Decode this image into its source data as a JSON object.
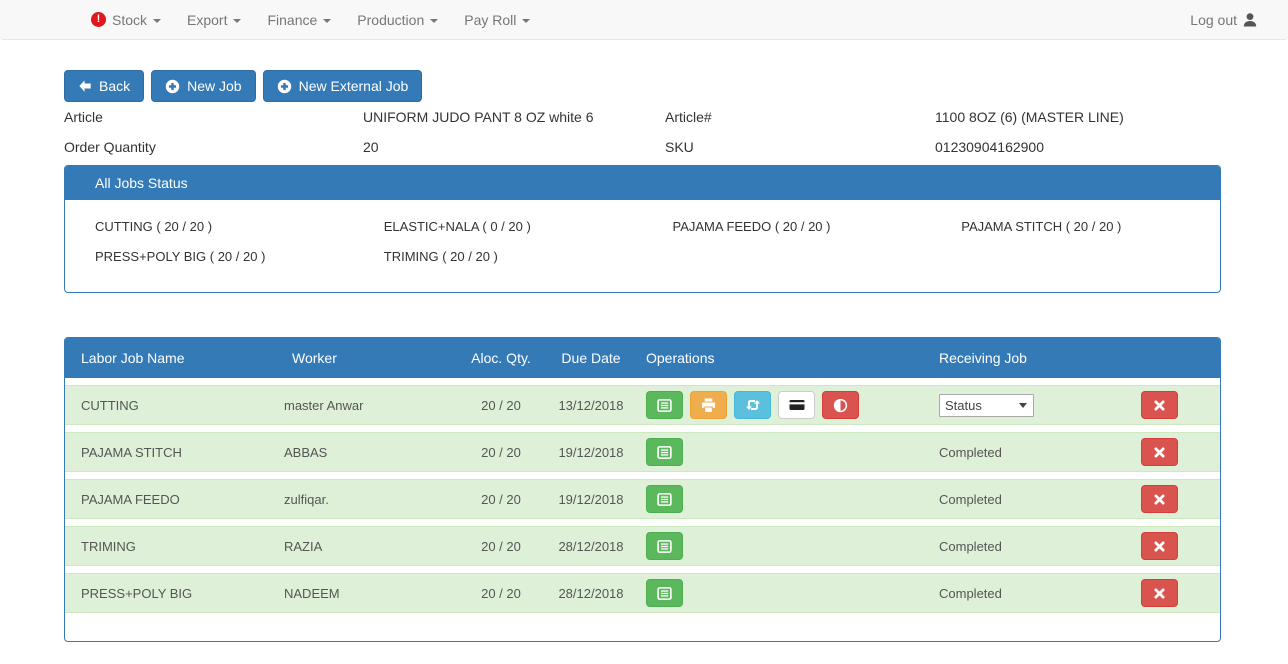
{
  "colors": {
    "primary_blue": "#337ab7",
    "primary_border": "#2e6da4",
    "success_green": "#5cb85c",
    "warning_orange": "#f0ad4e",
    "info_blue": "#5bc0de",
    "danger_red": "#d9534f",
    "row_background": "#dff0d8",
    "navbar_background": "#f8f8f8",
    "alert_red": "#e0171f"
  },
  "icons": {
    "nav_alert": "exclamation-circle-icon",
    "nav_dropdown": "caret-down-icon",
    "logout": "user-icon",
    "back": "arrow-left-icon",
    "new_job": "plus-circle-icon",
    "op_list": "list-alt-icon",
    "op_print": "printer-icon",
    "op_repeat": "repeat-arrows-icon",
    "op_card": "credit-card-icon",
    "op_adjust": "half-circle-adjust-icon",
    "delete": "x-cross-icon"
  },
  "navbar": {
    "items": [
      {
        "label": "Stock",
        "alert": true
      },
      {
        "label": "Export",
        "alert": false
      },
      {
        "label": "Finance",
        "alert": false
      },
      {
        "label": "Production",
        "alert": false
      },
      {
        "label": "Pay Roll",
        "alert": false
      }
    ],
    "logout_label": "Log out"
  },
  "toolbar": {
    "back_label": "Back",
    "new_job_label": "New Job",
    "new_external_job_label": "New External Job"
  },
  "details": {
    "article_label": "Article",
    "article_value": "UNIFORM JUDO PANT 8 OZ white 6",
    "article_no_label": "Article#",
    "article_no_value": "1100 8OZ (6) (MASTER LINE)",
    "order_qty_label": "Order Quantity",
    "order_qty_value": "20",
    "sku_label": "SKU",
    "sku_value": "01230904162900"
  },
  "jobs_status": {
    "title": "All Jobs Status",
    "items": [
      "CUTTING ( 20 / 20 )",
      "ELASTIC+NALA ( 0 / 20 )",
      "PAJAMA FEEDO ( 20 / 20 )",
      "PAJAMA STITCH ( 20 / 20 )",
      "PRESS+POLY BIG ( 20 / 20 )",
      "TRIMING ( 20 / 20 )"
    ]
  },
  "jobs_table": {
    "headers": [
      "Labor Job Name",
      "Worker",
      "Aloc. Qty.",
      "Due Date",
      "Operations",
      "Receiving Job"
    ],
    "rows": [
      {
        "name": "CUTTING",
        "worker": "master Anwar",
        "qty": "20 / 20",
        "due": "13/12/2018",
        "ops": [
          "list-alt",
          "print",
          "repeat",
          "credit-card",
          "adjust"
        ],
        "receiving_type": "select",
        "receiving_value": "Status"
      },
      {
        "name": "PAJAMA STITCH",
        "worker": "ABBAS",
        "qty": "20 / 20",
        "due": "19/12/2018",
        "ops": [
          "list-alt"
        ],
        "receiving_type": "text",
        "receiving_value": "Completed"
      },
      {
        "name": "PAJAMA FEEDO",
        "worker": "zulfiqar.",
        "qty": "20 / 20",
        "due": "19/12/2018",
        "ops": [
          "list-alt"
        ],
        "receiving_type": "text",
        "receiving_value": "Completed"
      },
      {
        "name": "TRIMING",
        "worker": "RAZIA",
        "qty": "20 / 20",
        "due": "28/12/2018",
        "ops": [
          "list-alt"
        ],
        "receiving_type": "text",
        "receiving_value": "Completed"
      },
      {
        "name": "PRESS+POLY BIG",
        "worker": "NADEEM",
        "qty": "20 / 20",
        "due": "28/12/2018",
        "ops": [
          "list-alt"
        ],
        "receiving_type": "text",
        "receiving_value": "Completed"
      }
    ]
  }
}
